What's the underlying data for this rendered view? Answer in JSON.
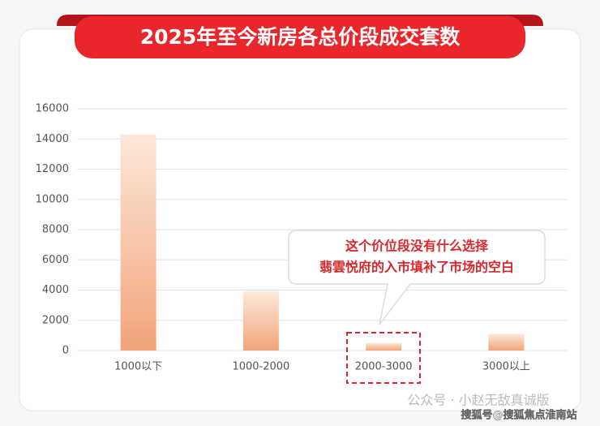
{
  "chart_data": {
    "type": "bar",
    "title": "2025年至今新房各总价段成交套数",
    "categories": [
      "1000以下",
      "1000-2000",
      "2000-3000",
      "3000以上"
    ],
    "values": [
      14300,
      3900,
      500,
      1100
    ],
    "color": "#f2a47a",
    "ylim": [
      0,
      16000
    ],
    "yticks": [
      0,
      2000,
      4000,
      6000,
      8000,
      10000,
      12000,
      14000,
      16000
    ],
    "grid": true,
    "annotation": [
      "这个价位段没有什么选择",
      "翡雲悦府的入市填补了市场的空白"
    ],
    "watermarks": [
      "公众号 · 小赵无敌真诚版",
      "搜狐号@搜狐焦点淮南站"
    ]
  }
}
